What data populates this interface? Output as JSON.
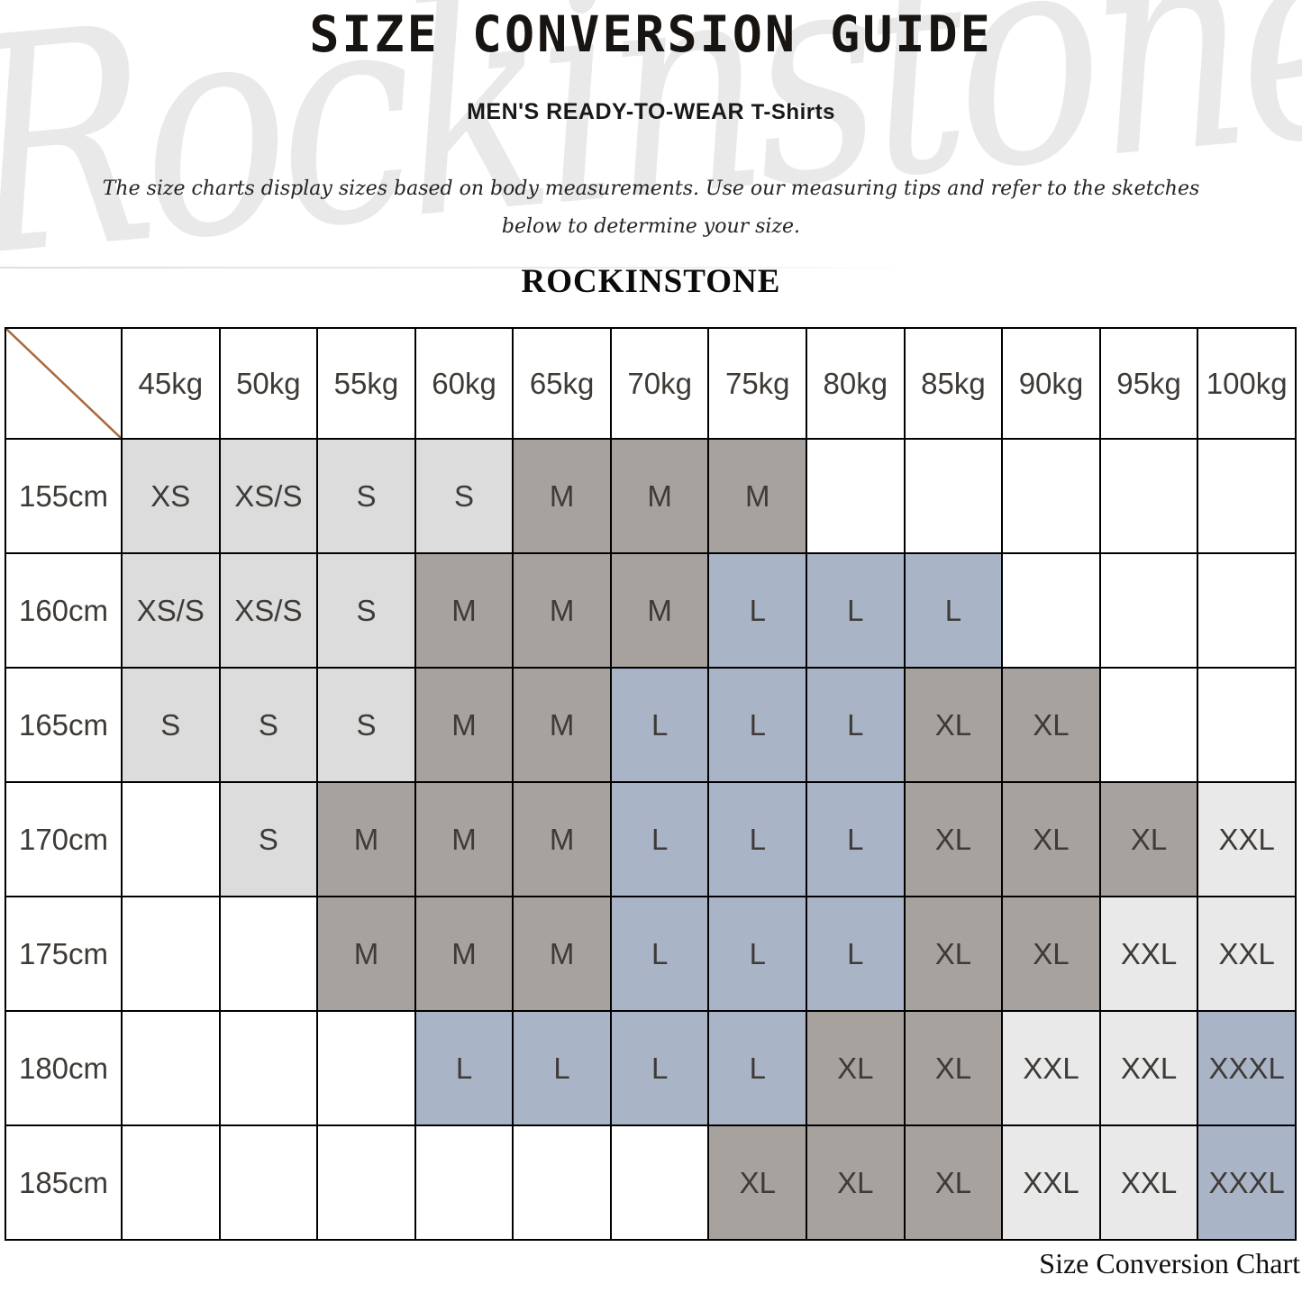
{
  "header": {
    "title": "SIZE CONVERSION GUIDE",
    "subtitle_main": "MEN'S READY-TO-WEAR",
    "subtitle_secondary": "T-Shirts",
    "description_line1": "The size charts display sizes based on body measurements. Use our measuring tips and refer to the sketches",
    "description_line2": "below to determine your size.",
    "brand": "ROCKINSTONE"
  },
  "watermark_text": "Rockinstone",
  "footer": {
    "caption": "Size Conversion Chart"
  },
  "colors": {
    "cell_white": "#ffffff",
    "cell_lightgray": "#dcdcdc",
    "cell_lightergray": "#e9e9e9",
    "cell_gray": "#a7a29d",
    "cell_blue": "#a9b5c7",
    "border": "#000000",
    "diagonal_line": "#a9693c",
    "cell_text": "#3e3a36"
  },
  "chart_data": {
    "type": "table",
    "title": "SIZE CONVERSION GUIDE",
    "subtitle": "MEN'S READY-TO-WEAR T-Shirts",
    "columns": [
      "45kg",
      "50kg",
      "55kg",
      "60kg",
      "65kg",
      "70kg",
      "75kg",
      "80kg",
      "85kg",
      "90kg",
      "95kg",
      "100kg"
    ],
    "row_labels": [
      "155cm",
      "160cm",
      "165cm",
      "170cm",
      "175cm",
      "180cm",
      "185cm"
    ],
    "values": [
      [
        "XS",
        "XS/S",
        "S",
        "S",
        "M",
        "M",
        "M",
        "",
        "",
        "",
        "",
        ""
      ],
      [
        "XS/S",
        "XS/S",
        "S",
        "M",
        "M",
        "M",
        "L",
        "L",
        "L",
        "",
        "",
        ""
      ],
      [
        "S",
        "S",
        "S",
        "M",
        "M",
        "L",
        "L",
        "L",
        "XL",
        "XL",
        "",
        ""
      ],
      [
        "",
        "S",
        "M",
        "M",
        "M",
        "L",
        "L",
        "L",
        "XL",
        "XL",
        "XL",
        "XXL"
      ],
      [
        "",
        "",
        "M",
        "M",
        "M",
        "L",
        "L",
        "L",
        "XL",
        "XL",
        "XXL",
        "XXL"
      ],
      [
        "",
        "",
        "",
        "L",
        "L",
        "L",
        "L",
        "XL",
        "XL",
        "XXL",
        "XXL",
        "XXXL"
      ],
      [
        "",
        "",
        "",
        "",
        "",
        "",
        "XL",
        "XL",
        "XL",
        "XXL",
        "XXL",
        "XXXL"
      ]
    ],
    "cell_colors": [
      [
        "lightgray",
        "lightgray",
        "lightgray",
        "lightgray",
        "gray",
        "gray",
        "gray",
        "white",
        "white",
        "white",
        "white",
        "white"
      ],
      [
        "lightgray",
        "lightgray",
        "lightgray",
        "gray",
        "gray",
        "gray",
        "blue",
        "blue",
        "blue",
        "white",
        "white",
        "white"
      ],
      [
        "lightgray",
        "lightgray",
        "lightgray",
        "gray",
        "gray",
        "blue",
        "blue",
        "blue",
        "gray",
        "gray",
        "white",
        "white"
      ],
      [
        "white",
        "lightgray",
        "gray",
        "gray",
        "gray",
        "blue",
        "blue",
        "blue",
        "gray",
        "gray",
        "gray",
        "lightergray"
      ],
      [
        "white",
        "white",
        "gray",
        "gray",
        "gray",
        "blue",
        "blue",
        "blue",
        "gray",
        "gray",
        "lightergray",
        "lightergray"
      ],
      [
        "white",
        "white",
        "white",
        "blue",
        "blue",
        "blue",
        "blue",
        "gray",
        "gray",
        "lightergray",
        "lightergray",
        "blue"
      ],
      [
        "white",
        "white",
        "white",
        "white",
        "white",
        "white",
        "gray",
        "gray",
        "gray",
        "lightergray",
        "lightergray",
        "blue"
      ]
    ],
    "legend_position": "none",
    "grid": true
  }
}
